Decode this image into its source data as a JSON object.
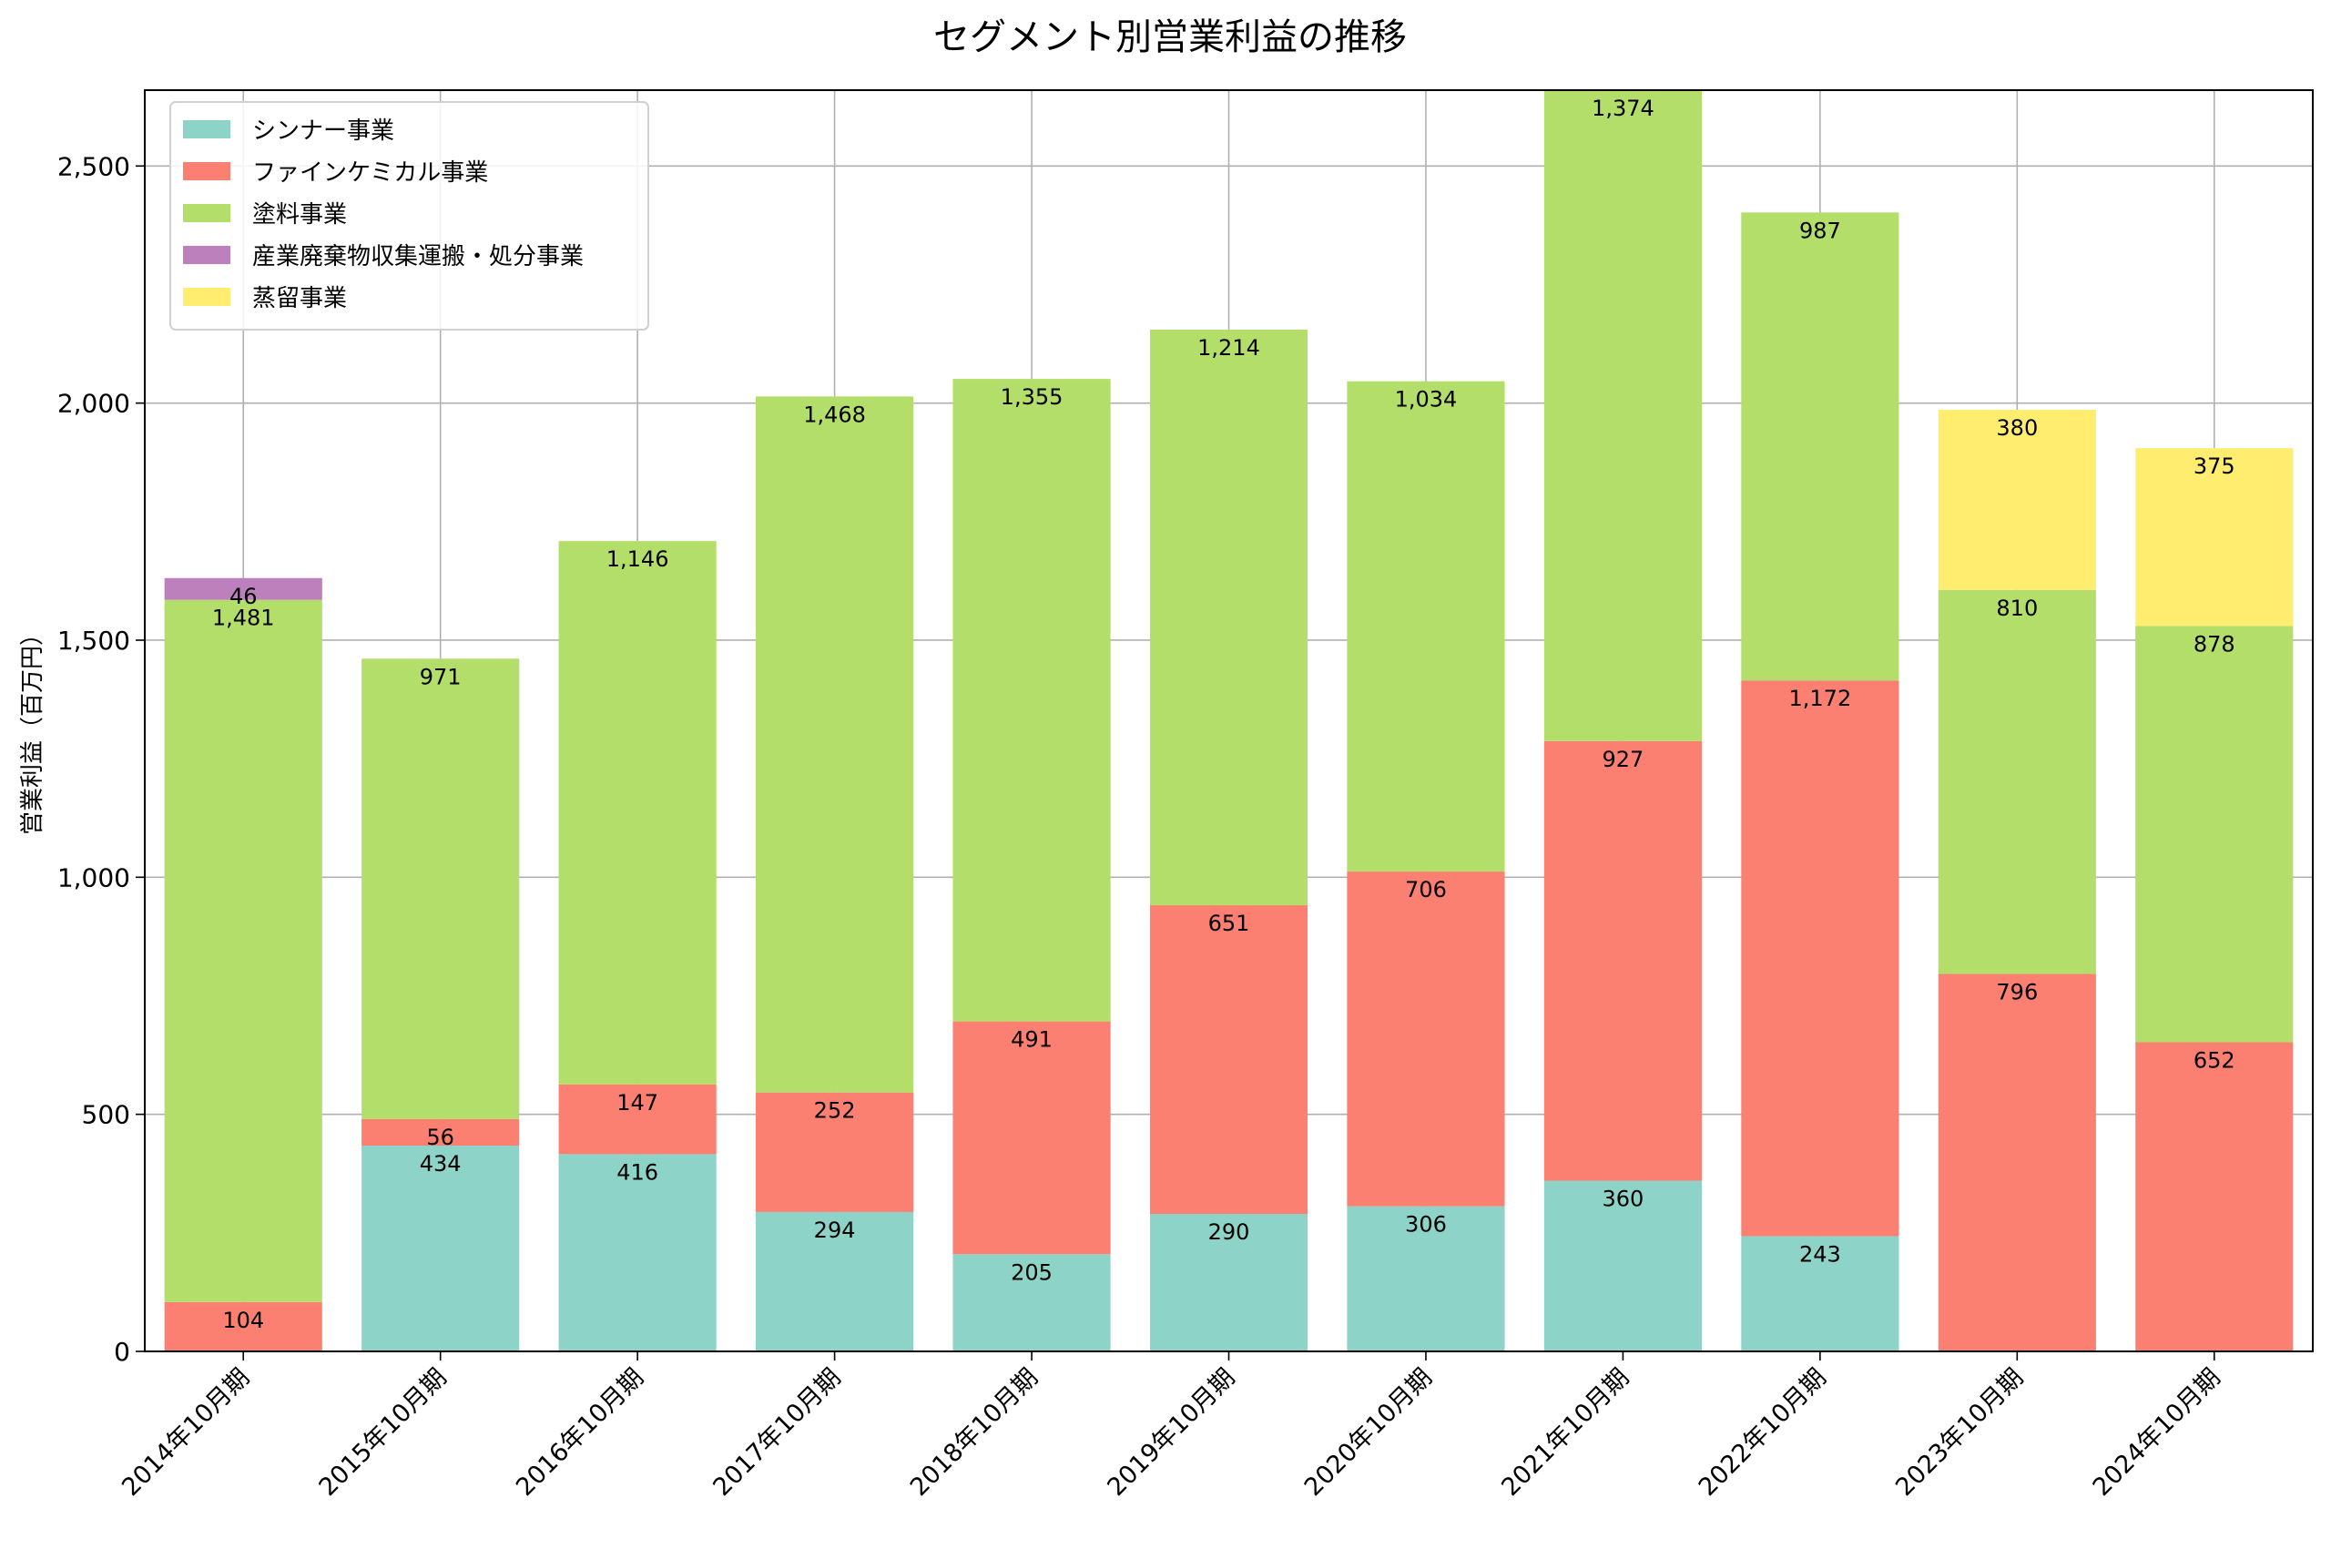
{
  "chart_data": {
    "type": "bar",
    "stacked": true,
    "title": "セグメント別営業利益の推移",
    "xlabel": "",
    "ylabel": "営業利益（百万円）",
    "ylim": [
      0,
      2660
    ],
    "yticks": [
      0,
      500,
      1000,
      1500,
      2000,
      2500
    ],
    "ytick_labels": [
      "0",
      "500",
      "1,000",
      "1,500",
      "2,000",
      "2,500"
    ],
    "grid": true,
    "legend_position": "top-left",
    "categories": [
      "2014年10月期",
      "2015年10月期",
      "2016年10月期",
      "2017年10月期",
      "2018年10月期",
      "2019年10月期",
      "2020年10月期",
      "2021年10月期",
      "2022年10月期",
      "2023年10月期",
      "2024年10月期"
    ],
    "series": [
      {
        "name": "シンナー事業",
        "color": "#8dd3c7",
        "values": [
          null,
          434,
          416,
          294,
          205,
          290,
          306,
          360,
          243,
          null,
          null
        ],
        "labels": [
          "",
          "434",
          "416",
          "294",
          "205",
          "290",
          "306",
          "360",
          "243",
          "",
          ""
        ]
      },
      {
        "name": "ファインケミカル事業",
        "color": "#fb8072",
        "values": [
          104,
          56,
          147,
          252,
          491,
          651,
          706,
          927,
          1172,
          796,
          652
        ],
        "labels": [
          "104",
          "56",
          "147",
          "252",
          "491",
          "651",
          "706",
          "927",
          "1,172",
          "796",
          "652"
        ]
      },
      {
        "name": "塗料事業",
        "color": "#b3de69",
        "values": [
          1481,
          971,
          1146,
          1468,
          1355,
          1214,
          1034,
          1374,
          987,
          810,
          878
        ],
        "labels": [
          "1,481",
          "971",
          "1,146",
          "1,468",
          "1,355",
          "1,214",
          "1,034",
          "1,374",
          "987",
          "810",
          "878"
        ]
      },
      {
        "name": "産業廃棄物収集運搬・処分事業",
        "color": "#bc80bd",
        "values": [
          46,
          null,
          null,
          null,
          null,
          null,
          null,
          null,
          null,
          null,
          null
        ],
        "labels": [
          "46",
          "",
          "",
          "",
          "",
          "",
          "",
          "",
          "",
          "",
          ""
        ]
      },
      {
        "name": "蒸留事業",
        "color": "#ffed6f",
        "values": [
          null,
          null,
          null,
          null,
          null,
          null,
          null,
          null,
          null,
          380,
          375
        ],
        "labels": [
          "",
          "",
          "",
          "",
          "",
          "",
          "",
          "",
          "",
          "380",
          "375"
        ]
      }
    ]
  }
}
